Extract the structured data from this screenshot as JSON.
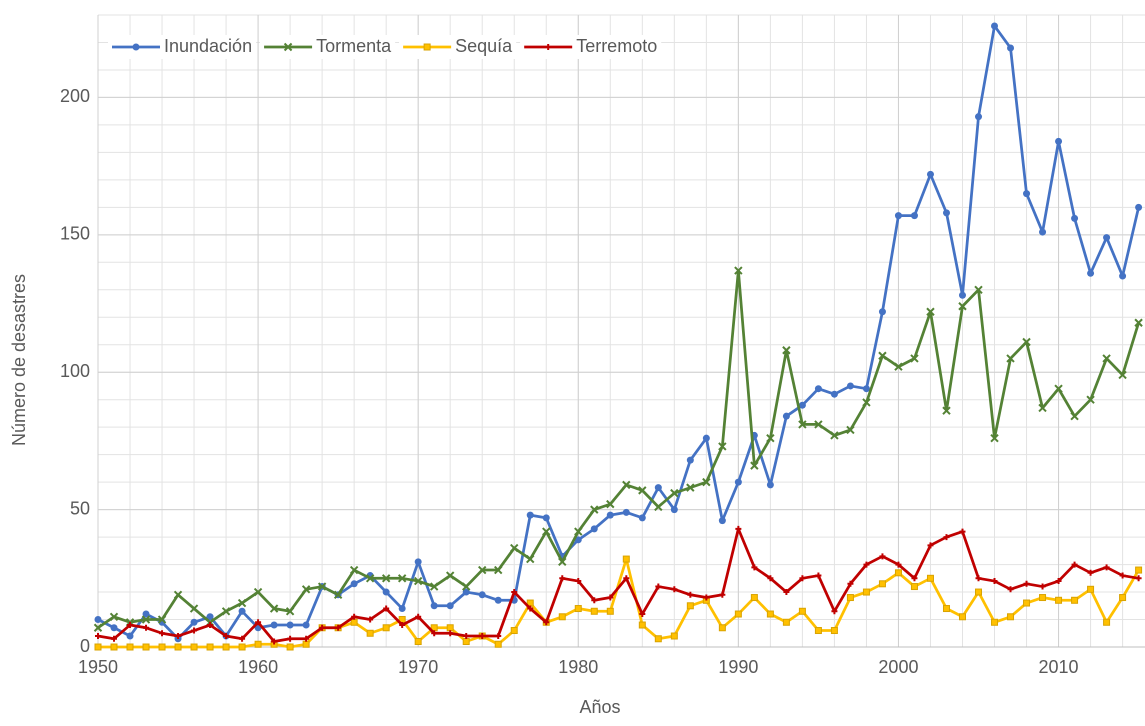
{
  "chart_data": {
    "type": "line",
    "xlabel": "Años",
    "ylabel": "Número de desastres",
    "x": [
      1950,
      1951,
      1952,
      1953,
      1954,
      1955,
      1956,
      1957,
      1958,
      1959,
      1960,
      1961,
      1962,
      1963,
      1964,
      1965,
      1966,
      1967,
      1968,
      1969,
      1970,
      1971,
      1972,
      1973,
      1974,
      1975,
      1976,
      1977,
      1978,
      1979,
      1980,
      1981,
      1982,
      1983,
      1984,
      1985,
      1986,
      1987,
      1988,
      1989,
      1990,
      1991,
      1992,
      1993,
      1994,
      1995,
      1996,
      1997,
      1998,
      1999,
      2000,
      2001,
      2002,
      2003,
      2004,
      2005,
      2006,
      2007,
      2008,
      2009,
      2010,
      2011,
      2012,
      2013,
      2014,
      2015
    ],
    "series": [
      {
        "name": "Inundación",
        "color": "#4472c4",
        "marker": "circle",
        "values": [
          10,
          7,
          4,
          12,
          9,
          3,
          9,
          11,
          4,
          13,
          7,
          8,
          8,
          8,
          22,
          19,
          23,
          26,
          20,
          14,
          31,
          15,
          15,
          20,
          19,
          17,
          17,
          48,
          47,
          33,
          39,
          43,
          48,
          49,
          47,
          58,
          50,
          68,
          76,
          46,
          60,
          77,
          59,
          84,
          88,
          94,
          92,
          95,
          94,
          122,
          157,
          157,
          172,
          158,
          128,
          193,
          226,
          218,
          165,
          151,
          184,
          156,
          136,
          149,
          135,
          160
        ]
      },
      {
        "name": "Tormenta",
        "color": "#548235",
        "marker": "x",
        "values": [
          7,
          11,
          9,
          10,
          10,
          19,
          14,
          9,
          13,
          16,
          20,
          14,
          13,
          21,
          22,
          19,
          28,
          25,
          25,
          25,
          24,
          22,
          26,
          22,
          28,
          28,
          36,
          32,
          42,
          31,
          42,
          50,
          52,
          59,
          57,
          51,
          56,
          58,
          60,
          73,
          137,
          66,
          76,
          108,
          81,
          81,
          77,
          79,
          89,
          106,
          102,
          105,
          122,
          86,
          124,
          130,
          76,
          105,
          111,
          87,
          94,
          84,
          90,
          105,
          99,
          118
        ]
      },
      {
        "name": "Sequía",
        "color": "#ffc000",
        "marker": "square",
        "values": [
          0,
          0,
          0,
          0,
          0,
          0,
          0,
          0,
          0,
          0,
          1,
          1,
          0,
          1,
          7,
          7,
          9,
          5,
          7,
          10,
          2,
          7,
          7,
          2,
          4,
          1,
          6,
          16,
          9,
          11,
          14,
          13,
          13,
          32,
          8,
          3,
          4,
          15,
          17,
          7,
          12,
          18,
          12,
          9,
          13,
          6,
          6,
          18,
          20,
          23,
          27,
          22,
          25,
          14,
          11,
          20,
          9,
          11,
          16,
          18,
          17,
          17,
          21,
          9,
          18,
          28
        ]
      },
      {
        "name": "Terremoto",
        "color": "#c00000",
        "marker": "plus",
        "values": [
          4,
          3,
          8,
          7,
          5,
          4,
          6,
          8,
          4,
          3,
          9,
          2,
          3,
          3,
          7,
          7,
          11,
          10,
          14,
          8,
          11,
          5,
          5,
          4,
          4,
          4,
          20,
          14,
          9,
          25,
          24,
          17,
          18,
          25,
          12,
          22,
          21,
          19,
          18,
          19,
          43,
          29,
          25,
          20,
          25,
          26,
          13,
          23,
          30,
          33,
          30,
          25,
          37,
          40,
          42,
          25,
          24,
          21,
          23,
          22,
          24,
          30,
          27,
          29,
          26,
          25
        ]
      }
    ],
    "xlim": [
      1950,
      2015.4
    ],
    "xticks": [
      1950,
      1960,
      1970,
      1980,
      1990,
      2000,
      2010
    ],
    "ylim": [
      0,
      230
    ],
    "yticks": [
      0,
      50,
      100,
      150,
      200
    ],
    "grid": true,
    "minor_grid_divisions": 5,
    "legend": "top-left"
  }
}
